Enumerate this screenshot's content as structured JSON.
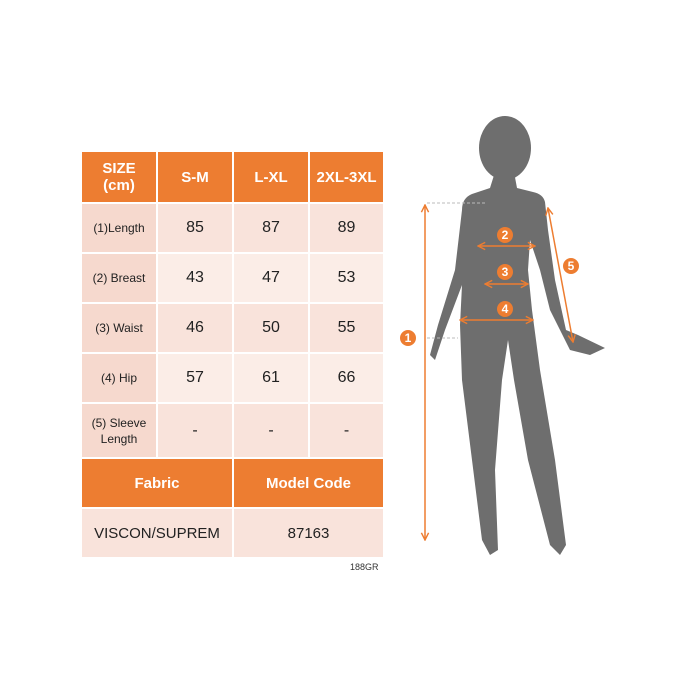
{
  "header": {
    "size": "SIZE",
    "unit": "(cm)",
    "sizes": [
      "S-M",
      "L-XL",
      "2XL-3XL"
    ]
  },
  "rows": [
    {
      "label": "(1)Length",
      "values": [
        "85",
        "87",
        "89"
      ]
    },
    {
      "label": "(2) Breast",
      "values": [
        "43",
        "47",
        "53"
      ]
    },
    {
      "label": "(3) Waist",
      "values": [
        "46",
        "50",
        "55"
      ]
    },
    {
      "label": "(4) Hip",
      "values": [
        "57",
        "61",
        "66"
      ]
    },
    {
      "label": "(5) Sleeve Length",
      "values": [
        "-",
        "-",
        "-"
      ]
    }
  ],
  "footer": {
    "fabric_label": "Fabric",
    "model_label": "Model Code",
    "fabric": "VISCON/SUPREM",
    "model_code": "87163"
  },
  "image_code": "188GR",
  "markers": [
    "1",
    "2",
    "3",
    "4",
    "5"
  ],
  "colors": {
    "accent": "#ED7D31",
    "silhouette": "#6E6E6E"
  }
}
